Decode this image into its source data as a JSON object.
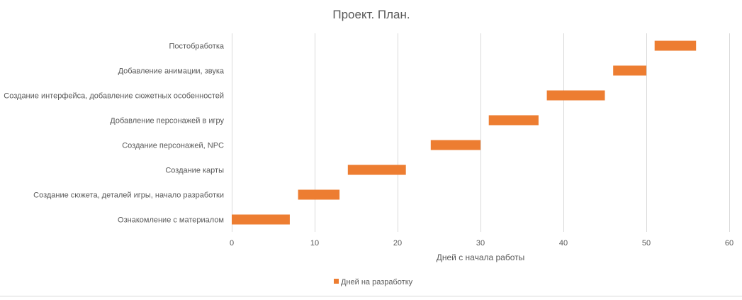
{
  "chart_data": {
    "type": "bar",
    "orientation": "horizontal-gantt",
    "title": "Проект. План.",
    "xlabel": "Дней с начала работы",
    "ylabel": "",
    "xlim": [
      0,
      60
    ],
    "xticks": [
      0,
      10,
      20,
      30,
      40,
      50,
      60
    ],
    "grid": true,
    "legend_position": "bottom",
    "categories": [
      "Ознакомление с материалом",
      "Создание сюжета, деталей игры, начало разработки",
      "Создание карты",
      "Создание персонажей, NPC",
      "Добавление персонажей в игру",
      "Создание интерфейса, добавление сюжетных особенностей",
      "Добавление анимации, звука",
      "Постобработка"
    ],
    "series": [
      {
        "name": "Дней на разработку",
        "start": [
          0,
          8,
          14,
          24,
          31,
          38,
          46,
          51
        ],
        "duration": [
          7,
          5,
          7,
          6,
          6,
          7,
          4,
          5
        ],
        "color": "#ED7D31"
      }
    ],
    "colors": {
      "bar": "#ED7D31",
      "grid": "#d9d9d9",
      "text": "#595959",
      "title": "#595959"
    }
  }
}
